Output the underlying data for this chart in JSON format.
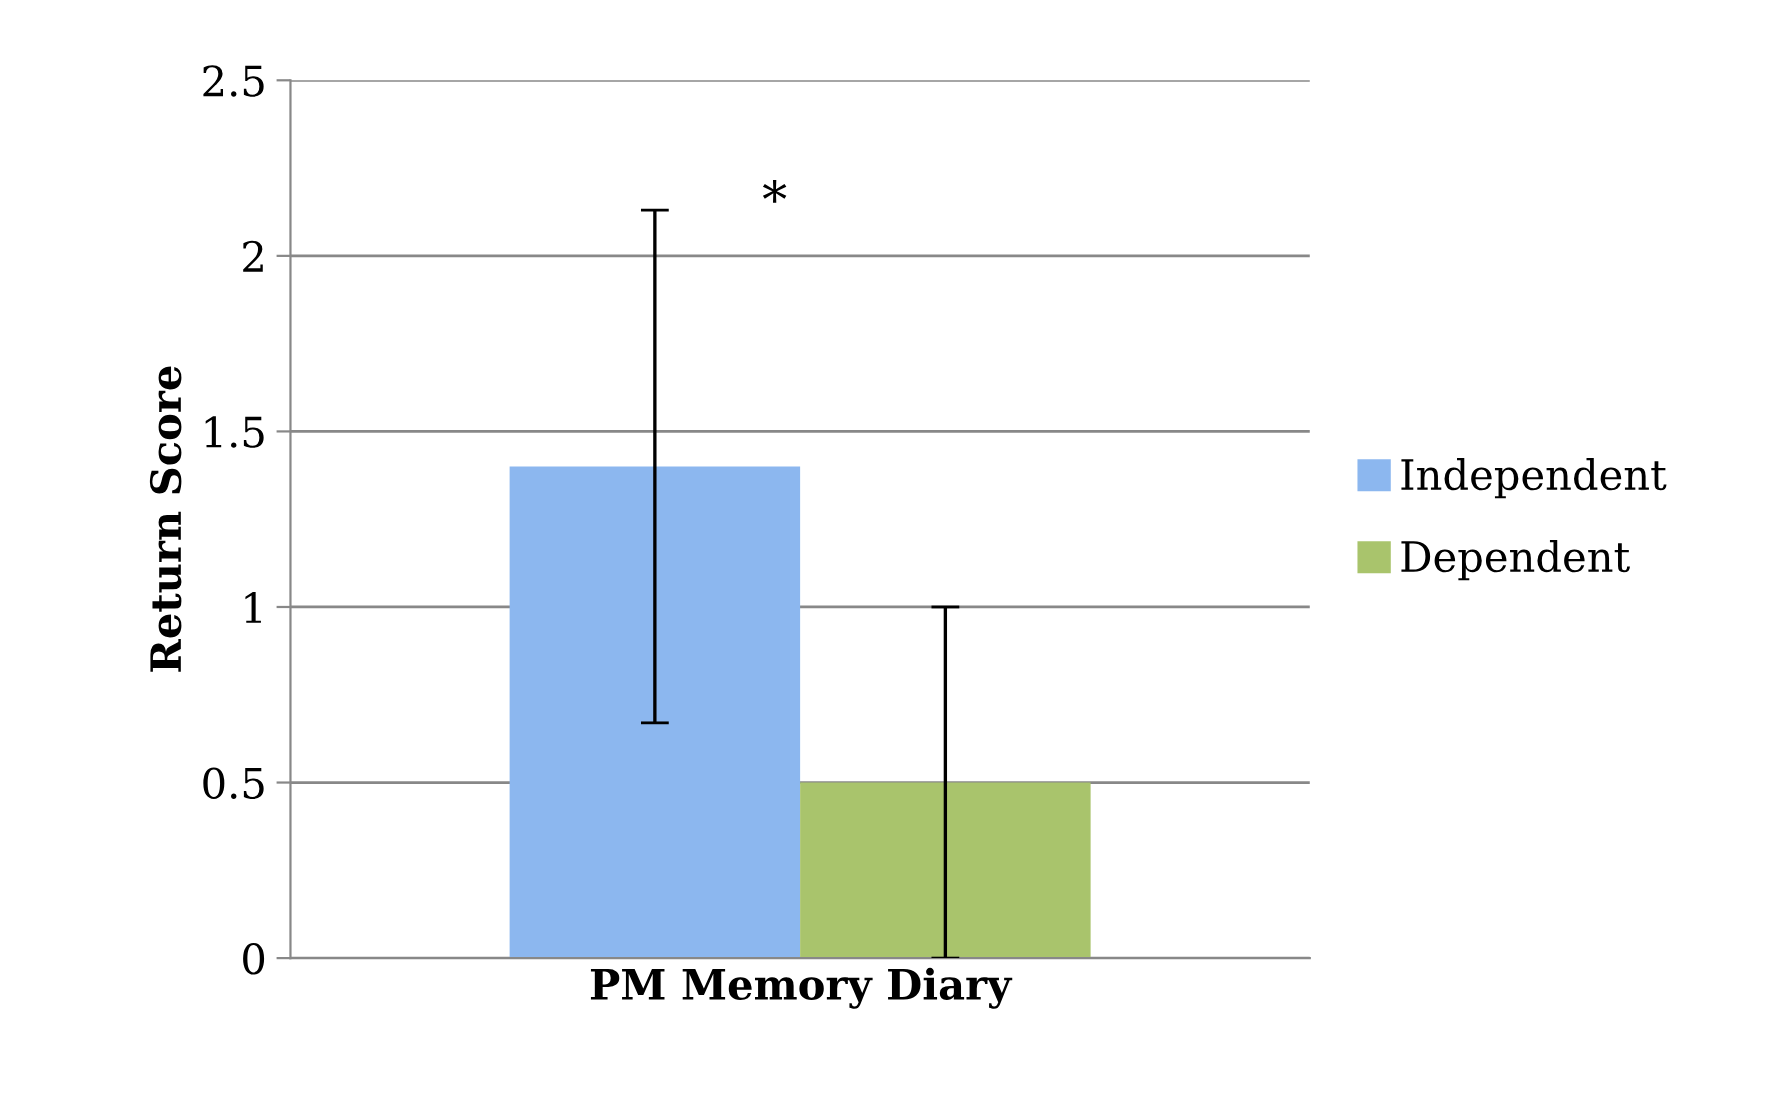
{
  "chart_data": {
    "type": "bar",
    "ylabel": "Return Score",
    "categories": [
      "PM Memory Diary"
    ],
    "series": [
      {
        "name": "Independent",
        "color": "#8cb7ef",
        "values": [
          1.4
        ],
        "errors": [
          0.73
        ]
      },
      {
        "name": "Dependent",
        "color": "#a9c46c",
        "values": [
          0.5
        ],
        "errors": [
          0.5
        ]
      }
    ],
    "ylim": [
      0,
      2.5
    ],
    "yticks": [
      0,
      0.5,
      1,
      1.5,
      2,
      2.5
    ],
    "grid": "y",
    "legend": "right",
    "annotations": [
      "*"
    ]
  }
}
